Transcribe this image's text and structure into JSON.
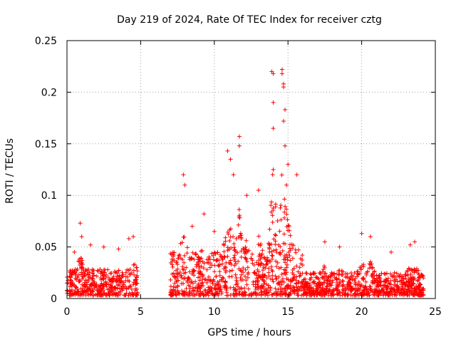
{
  "chart_data": {
    "type": "scatter",
    "title": "Day 219 of 2024, Rate Of TEC Index for receiver cztg",
    "xlabel": "GPS time / hours",
    "ylabel": "ROTI / TECUs",
    "xlim": [
      0,
      25
    ],
    "ylim": [
      0,
      0.25
    ],
    "x_ticks": [
      0,
      5,
      10,
      15,
      20,
      25
    ],
    "x_tick_labels": [
      "0",
      "5",
      "10",
      "15",
      "20",
      "25"
    ],
    "y_ticks": [
      0,
      0.05,
      0.1,
      0.15,
      0.2,
      0.25
    ],
    "y_tick_labels": [
      "0",
      "0.05",
      "0.1",
      "0.15",
      "0.2",
      "0.25"
    ],
    "grid": true,
    "marker": "+",
    "series": [
      {
        "name": "ROTI",
        "color": "#ff0000",
        "bands": [
          {
            "x": [
              0.0,
              4.8
            ],
            "base": [
              0.003,
              0.028
            ],
            "peaks": [
              [
                0.5,
                0.045
              ],
              [
                0.9,
                0.073
              ],
              [
                1.6,
                0.052
              ],
              [
                2.5,
                0.05
              ],
              [
                3.5,
                0.048
              ],
              [
                4.2,
                0.058
              ],
              [
                4.5,
                0.06
              ]
            ]
          },
          {
            "x": [
              7.0,
              16.0
            ],
            "base": [
              0.003,
              0.045
            ],
            "peaks": [
              [
                7.9,
                0.12
              ],
              [
                8.5,
                0.07
              ],
              [
                9.3,
                0.082
              ],
              [
                10.0,
                0.065
              ],
              [
                10.9,
                0.143
              ],
              [
                11.1,
                0.135
              ],
              [
                11.7,
                0.157
              ],
              [
                12.2,
                0.1
              ],
              [
                13.0,
                0.105
              ],
              [
                13.5,
                0.07
              ],
              [
                14.0,
                0.22
              ],
              [
                14.1,
                0.19
              ],
              [
                14.6,
                0.222
              ],
              [
                14.7,
                0.205
              ],
              [
                14.8,
                0.183
              ],
              [
                15.0,
                0.13
              ],
              [
                15.6,
                0.12
              ]
            ]
          },
          {
            "x": [
              16.0,
              24.2
            ],
            "base": [
              0.003,
              0.025
            ],
            "peaks": [
              [
                17.5,
                0.055
              ],
              [
                18.5,
                0.05
              ],
              [
                20.0,
                0.063
              ],
              [
                20.6,
                0.06
              ],
              [
                22.0,
                0.045
              ],
              [
                23.3,
                0.052
              ],
              [
                23.6,
                0.055
              ]
            ]
          }
        ],
        "points": [
          [
            0.5,
            0.045
          ],
          [
            0.9,
            0.073
          ],
          [
            1.0,
            0.06
          ],
          [
            1.6,
            0.052
          ],
          [
            2.5,
            0.05
          ],
          [
            3.5,
            0.048
          ],
          [
            4.2,
            0.058
          ],
          [
            4.5,
            0.06
          ],
          [
            7.9,
            0.12
          ],
          [
            8.0,
            0.11
          ],
          [
            8.5,
            0.07
          ],
          [
            9.3,
            0.082
          ],
          [
            10.0,
            0.065
          ],
          [
            10.9,
            0.143
          ],
          [
            11.1,
            0.135
          ],
          [
            11.3,
            0.12
          ],
          [
            11.7,
            0.157
          ],
          [
            11.7,
            0.148
          ],
          [
            12.2,
            0.1
          ],
          [
            13.0,
            0.105
          ],
          [
            13.9,
            0.22
          ],
          [
            14.0,
            0.218
          ],
          [
            14.0,
            0.19
          ],
          [
            14.0,
            0.165
          ],
          [
            14.0,
            0.125
          ],
          [
            14.6,
            0.222
          ],
          [
            14.6,
            0.218
          ],
          [
            14.7,
            0.205
          ],
          [
            14.7,
            0.208
          ],
          [
            14.8,
            0.183
          ],
          [
            14.7,
            0.172
          ],
          [
            14.8,
            0.148
          ],
          [
            15.0,
            0.13
          ],
          [
            14.9,
            0.11
          ],
          [
            15.6,
            0.12
          ],
          [
            17.5,
            0.055
          ],
          [
            18.5,
            0.05
          ],
          [
            20.0,
            0.063
          ],
          [
            20.6,
            0.06
          ],
          [
            22.0,
            0.045
          ],
          [
            23.3,
            0.052
          ],
          [
            23.6,
            0.055
          ]
        ]
      }
    ]
  }
}
